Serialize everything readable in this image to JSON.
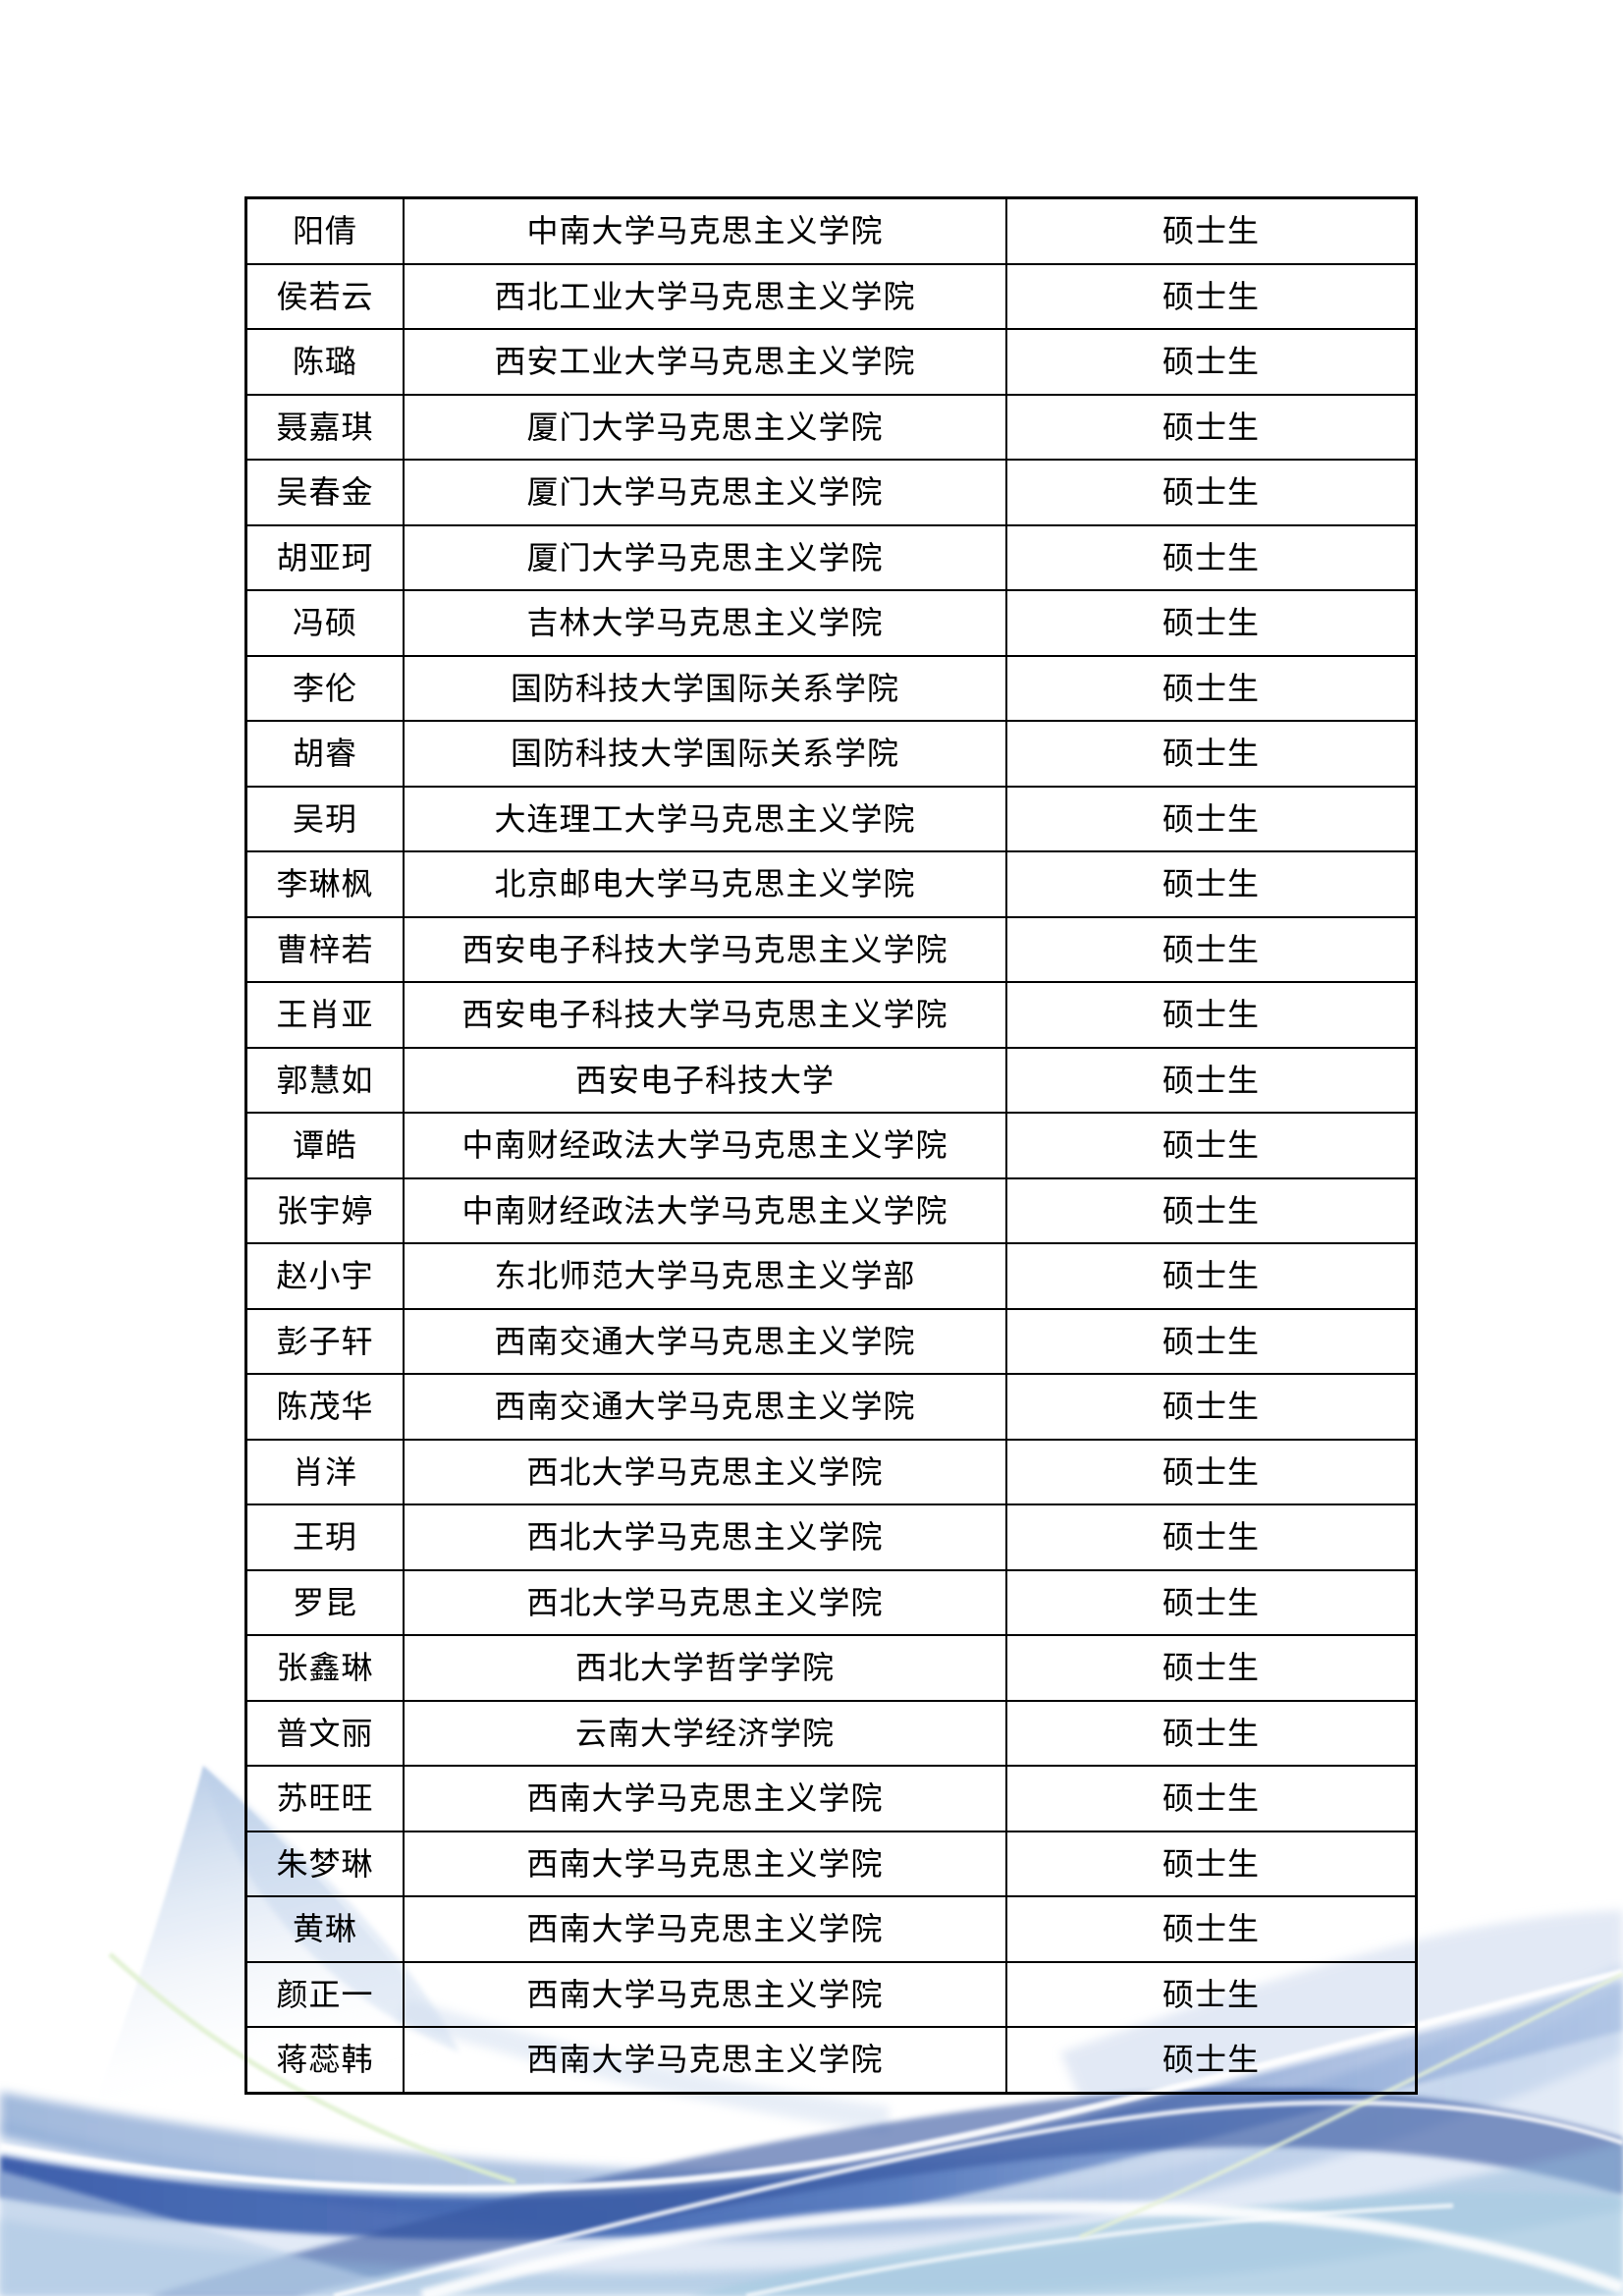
{
  "page": {
    "background": "#ffffff"
  },
  "table": {
    "border_color": "#000000",
    "text_color": "#000000",
    "columns": [
      "name",
      "institution",
      "degree"
    ],
    "rows": [
      {
        "name": "阳倩",
        "institution": "中南大学马克思主义学院",
        "degree": "硕士生"
      },
      {
        "name": "侯若云",
        "institution": "西北工业大学马克思主义学院",
        "degree": "硕士生"
      },
      {
        "name": "陈璐",
        "institution": "西安工业大学马克思主义学院",
        "degree": "硕士生"
      },
      {
        "name": "聂嘉琪",
        "institution": "厦门大学马克思主义学院",
        "degree": "硕士生"
      },
      {
        "name": "吴春金",
        "institution": "厦门大学马克思主义学院",
        "degree": "硕士生"
      },
      {
        "name": "胡亚珂",
        "institution": "厦门大学马克思主义学院",
        "degree": "硕士生"
      },
      {
        "name": "冯硕",
        "institution": "吉林大学马克思主义学院",
        "degree": "硕士生"
      },
      {
        "name": "李伦",
        "institution": "国防科技大学国际关系学院",
        "degree": "硕士生"
      },
      {
        "name": "胡睿",
        "institution": "国防科技大学国际关系学院",
        "degree": "硕士生"
      },
      {
        "name": "吴玥",
        "institution": "大连理工大学马克思主义学院",
        "degree": "硕士生"
      },
      {
        "name": "李琳枫",
        "institution": "北京邮电大学马克思主义学院",
        "degree": "硕士生"
      },
      {
        "name": "曹梓若",
        "institution": "西安电子科技大学马克思主义学院",
        "degree": "硕士生"
      },
      {
        "name": "王肖亚",
        "institution": "西安电子科技大学马克思主义学院",
        "degree": "硕士生"
      },
      {
        "name": "郭慧如",
        "institution": "西安电子科技大学",
        "degree": "硕士生"
      },
      {
        "name": "谭皓",
        "institution": "中南财经政法大学马克思主义学院",
        "degree": "硕士生"
      },
      {
        "name": "张宇婷",
        "institution": "中南财经政法大学马克思主义学院",
        "degree": "硕士生"
      },
      {
        "name": "赵小宇",
        "institution": "东北师范大学马克思主义学部",
        "degree": "硕士生"
      },
      {
        "name": "彭子轩",
        "institution": "西南交通大学马克思主义学院",
        "degree": "硕士生"
      },
      {
        "name": "陈茂华",
        "institution": "西南交通大学马克思主义学院",
        "degree": "硕士生"
      },
      {
        "name": "肖洋",
        "institution": "西北大学马克思主义学院",
        "degree": "硕士生"
      },
      {
        "name": "王玥",
        "institution": "西北大学马克思主义学院",
        "degree": "硕士生"
      },
      {
        "name": "罗昆",
        "institution": "西北大学马克思主义学院",
        "degree": "硕士生"
      },
      {
        "name": "张鑫琳",
        "institution": "西北大学哲学学院",
        "degree": "硕士生"
      },
      {
        "name": "普文丽",
        "institution": "云南大学经济学院",
        "degree": "硕士生"
      },
      {
        "name": "苏旺旺",
        "institution": "西南大学马克思主义学院",
        "degree": "硕士生"
      },
      {
        "name": "朱梦琳",
        "institution": "西南大学马克思主义学院",
        "degree": "硕士生"
      },
      {
        "name": "黄琳",
        "institution": "西南大学马克思主义学院",
        "degree": "硕士生"
      },
      {
        "name": "颜正一",
        "institution": "西南大学马克思主义学院",
        "degree": "硕士生"
      },
      {
        "name": "蒋蕊韩",
        "institution": "西南大学马克思主义学院",
        "degree": "硕士生"
      }
    ]
  },
  "decoration": {
    "wave_colors": {
      "deep_blue": "#2b50a4",
      "indigo": "#34549f",
      "steel_blue": "#6f93c9",
      "light_blue": "#a9c4e3",
      "pale_blue": "#dce6f4",
      "teal_blue": "#8fb6d8",
      "highlight_white": "#ffffff",
      "pale_green": "#dff0cf"
    }
  }
}
